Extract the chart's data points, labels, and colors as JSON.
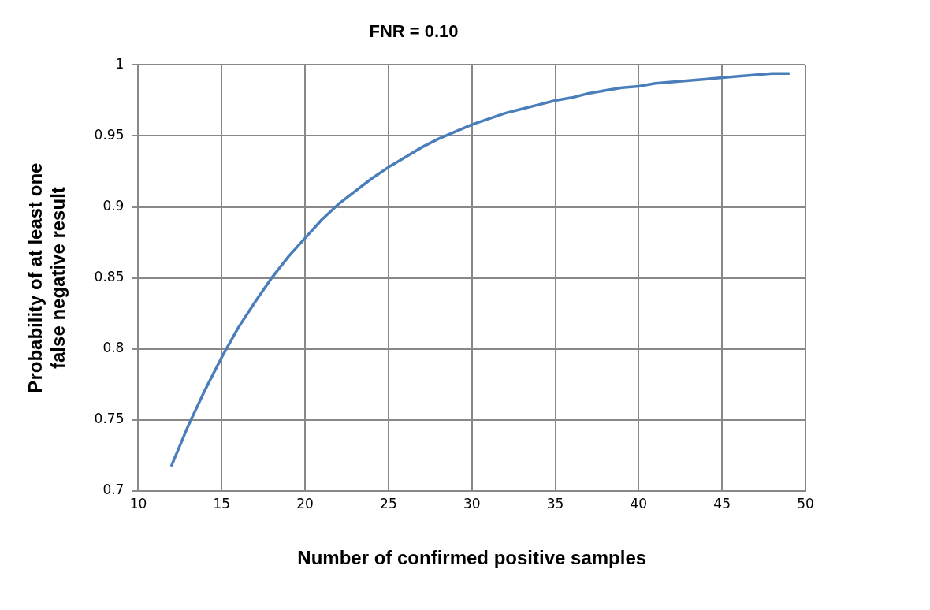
{
  "chart_data": {
    "type": "line",
    "title": "FNR = 0.10",
    "xlabel": "Number of confirmed positive samples",
    "ylabel": "Probability of at least one false negative result",
    "x": [
      12,
      13,
      14,
      15,
      16,
      17,
      18,
      19,
      20,
      21,
      22,
      23,
      24,
      25,
      26,
      27,
      28,
      29,
      30,
      31,
      32,
      33,
      34,
      35,
      36,
      37,
      38,
      39,
      40,
      41,
      42,
      43,
      44,
      45,
      46,
      47,
      48,
      49
    ],
    "series": [
      {
        "color": "#4a7ebb",
        "values": [
          0.718,
          0.746,
          0.771,
          0.794,
          0.815,
          0.833,
          0.85,
          0.865,
          0.878,
          0.891,
          0.902,
          0.911,
          0.92,
          0.928,
          0.935,
          0.942,
          0.948,
          0.953,
          0.958,
          0.962,
          0.966,
          0.969,
          0.972,
          0.975,
          0.977,
          0.98,
          0.982,
          0.984,
          0.985,
          0.987,
          0.988,
          0.989,
          0.99,
          0.991,
          0.992,
          0.993,
          0.994,
          0.994
        ]
      }
    ],
    "xlim": [
      10,
      50
    ],
    "xticks": [
      10,
      15,
      20,
      25,
      30,
      35,
      40,
      45,
      50
    ],
    "ylim": [
      0.7,
      1
    ],
    "yticks": [
      0.7,
      0.75,
      0.8,
      0.85,
      0.9,
      0.95,
      1
    ],
    "grid": true,
    "legend": false,
    "marker": "none",
    "line_style": "solid"
  }
}
